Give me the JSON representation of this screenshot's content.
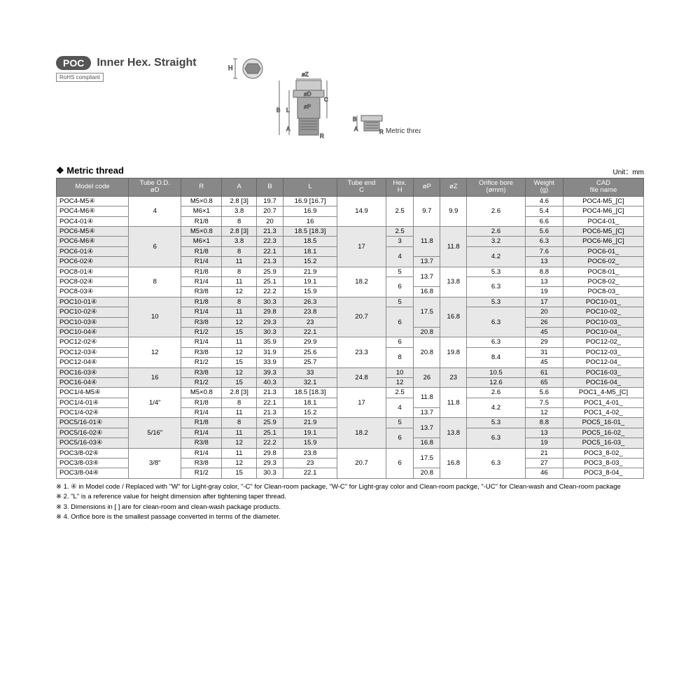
{
  "header": {
    "logo": "POC",
    "title": "Inner Hex. Straight",
    "rohs": "RoHS compliant",
    "metric_type_label": "Metric thread type"
  },
  "section": {
    "title": "Metric thread",
    "unit": "Unit：mm"
  },
  "table": {
    "headers": [
      "Model code",
      "Tube O.D.\nøD",
      "R",
      "A",
      "B",
      "L",
      "Tube end\nC",
      "Hex.\nH",
      "øP",
      "øZ",
      "Orifice bore\n(ømm)",
      "Weight\n(g)",
      "CAD\nfile name"
    ],
    "rows": [
      {
        "shade": false,
        "cells": [
          "POC4-M5④",
          {
            "v": "4",
            "rs": 3
          },
          "M5×0.8",
          "2.8 [3]",
          "19.7",
          "16.9 [16.7]",
          {
            "v": "14.9",
            "rs": 3
          },
          {
            "v": "2.5",
            "rs": 3
          },
          {
            "v": "9.7",
            "rs": 3
          },
          {
            "v": "9.9",
            "rs": 3
          },
          {
            "v": "2.6",
            "rs": 3
          },
          "4.6",
          "POC4-M5_[C]"
        ]
      },
      {
        "shade": false,
        "cells": [
          "POC4-M6④",
          "M6×1",
          "3.8",
          "20.7",
          "16.9",
          "5.4",
          "POC4-M6_[C]"
        ]
      },
      {
        "shade": false,
        "cells": [
          "POC4-01④",
          "R1/8",
          "8",
          "20",
          "16",
          "6.6",
          "POC4-01_"
        ]
      },
      {
        "shade": true,
        "cells": [
          "POC6-M5④",
          {
            "v": "6",
            "rs": 4
          },
          "M5×0.8",
          "2.8 [3]",
          "21.3",
          "18.5 [18.3]",
          {
            "v": "17",
            "rs": 4
          },
          "2.5",
          {
            "v": "11.8",
            "rs": 3
          },
          {
            "v": "11.8",
            "rs": 4
          },
          "2.6",
          "5.6",
          "POC6-M5_[C]"
        ]
      },
      {
        "shade": true,
        "cells": [
          "POC6-M6④",
          "M6×1",
          "3.8",
          "22.3",
          "18.5",
          "3",
          "3.2",
          "6.3",
          "POC6-M6_[C]"
        ]
      },
      {
        "shade": true,
        "cells": [
          "POC6-01④",
          "R1/8",
          "8",
          "22.1",
          "18.1",
          {
            "v": "4",
            "rs": 2
          },
          {
            "v": "4.2",
            "rs": 2
          },
          "7.6",
          "POC6-01_"
        ]
      },
      {
        "shade": true,
        "cells": [
          "POC6-02④",
          "R1/4",
          "11",
          "21.3",
          "15.2",
          "13.7",
          "13",
          "POC6-02_"
        ]
      },
      {
        "shade": false,
        "cells": [
          "POC8-01④",
          {
            "v": "8",
            "rs": 3
          },
          "R1/8",
          "8",
          "25.9",
          "21.9",
          {
            "v": "18.2",
            "rs": 3
          },
          "5",
          {
            "v": "13.7",
            "rs": 2
          },
          {
            "v": "13.8",
            "rs": 3
          },
          "5.3",
          "8.8",
          "POC8-01_"
        ]
      },
      {
        "shade": false,
        "cells": [
          "POC8-02④",
          "R1/4",
          "11",
          "25.1",
          "19.1",
          {
            "v": "6",
            "rs": 2
          },
          {
            "v": "6.3",
            "rs": 2
          },
          "13",
          "POC8-02_"
        ]
      },
      {
        "shade": false,
        "cells": [
          "POC8-03④",
          "R3/8",
          "12",
          "22.2",
          "15.9",
          "16.8",
          "19",
          "POC8-03_"
        ]
      },
      {
        "shade": true,
        "cells": [
          "POC10-01④",
          {
            "v": "10",
            "rs": 4
          },
          "R1/8",
          "8",
          "30.3",
          "26.3",
          {
            "v": "20.7",
            "rs": 4
          },
          "5",
          {
            "v": "17.5",
            "rs": 3
          },
          {
            "v": "16.8",
            "rs": 4
          },
          "5.3",
          "17",
          "POC10-01_"
        ]
      },
      {
        "shade": true,
        "cells": [
          "POC10-02④",
          "R1/4",
          "11",
          "29.8",
          "23.8",
          {
            "v": "6",
            "rs": 3
          },
          {
            "v": "6.3",
            "rs": 3
          },
          "20",
          "POC10-02_"
        ]
      },
      {
        "shade": true,
        "cells": [
          "POC10-03④",
          "R3/8",
          "12",
          "29.3",
          "23",
          "26",
          "POC10-03_"
        ]
      },
      {
        "shade": true,
        "cells": [
          "POC10-04④",
          "R1/2",
          "15",
          "30.3",
          "22.1",
          "20.8",
          "45",
          "POC10-04_"
        ]
      },
      {
        "shade": false,
        "cells": [
          "POC12-02④",
          {
            "v": "12",
            "rs": 3
          },
          "R1/4",
          "11",
          "35.9",
          "29.9",
          {
            "v": "23.3",
            "rs": 3
          },
          "6",
          {
            "v": "20.8",
            "rs": 3
          },
          {
            "v": "19.8",
            "rs": 3
          },
          "6.3",
          "29",
          "POC12-02_"
        ]
      },
      {
        "shade": false,
        "cells": [
          "POC12-03④",
          "R3/8",
          "12",
          "31.9",
          "25.6",
          {
            "v": "8",
            "rs": 2
          },
          {
            "v": "8.4",
            "rs": 2
          },
          "31",
          "POC12-03_"
        ]
      },
      {
        "shade": false,
        "cells": [
          "POC12-04④",
          "R1/2",
          "15",
          "33.9",
          "25.7",
          "45",
          "POC12-04_"
        ]
      },
      {
        "shade": true,
        "cells": [
          "POC16-03④",
          {
            "v": "16",
            "rs": 2
          },
          "R3/8",
          "12",
          "39.3",
          "33",
          {
            "v": "24.8",
            "rs": 2
          },
          "10",
          {
            "v": "26",
            "rs": 2
          },
          {
            "v": "23",
            "rs": 2
          },
          "10.5",
          "61",
          "POC16-03_"
        ]
      },
      {
        "shade": true,
        "cells": [
          "POC16-04④",
          "R1/2",
          "15",
          "40.3",
          "32.1",
          "12",
          "12.6",
          "65",
          "POC16-04_"
        ]
      },
      {
        "shade": false,
        "cells": [
          "POC1/4-M5④",
          {
            "v": "1/4\"",
            "rs": 3
          },
          "M5×0.8",
          "2.8 [3]",
          "21.3",
          "18.5 [18.3]",
          {
            "v": "17",
            "rs": 3
          },
          "2.5",
          {
            "v": "11.8",
            "rs": 2
          },
          {
            "v": "11.8",
            "rs": 3
          },
          "2.6",
          "5.6",
          "POC1_4-M5_[C]"
        ]
      },
      {
        "shade": false,
        "cells": [
          "POC1/4-01④",
          "R1/8",
          "8",
          "22.1",
          "18.1",
          {
            "v": "4",
            "rs": 2
          },
          {
            "v": "4.2",
            "rs": 2
          },
          "7.5",
          "POC1_4-01_"
        ]
      },
      {
        "shade": false,
        "cells": [
          "POC1/4-02④",
          "R1/4",
          "11",
          "21.3",
          "15.2",
          "13.7",
          "12",
          "POC1_4-02_"
        ]
      },
      {
        "shade": true,
        "cells": [
          "POC5/16-01④",
          {
            "v": "5/16\"",
            "rs": 3
          },
          "R1/8",
          "8",
          "25.9",
          "21.9",
          {
            "v": "18.2",
            "rs": 3
          },
          "5",
          {
            "v": "13.7",
            "rs": 2
          },
          {
            "v": "13.8",
            "rs": 3
          },
          "5.3",
          "8.8",
          "POC5_16-01_"
        ]
      },
      {
        "shade": true,
        "cells": [
          "POC5/16-02④",
          "R1/4",
          "11",
          "25.1",
          "19.1",
          {
            "v": "6",
            "rs": 2
          },
          {
            "v": "6.3",
            "rs": 2
          },
          "13",
          "POC5_16-02_"
        ]
      },
      {
        "shade": true,
        "cells": [
          "POC5/16-03④",
          "R3/8",
          "12",
          "22.2",
          "15.9",
          "16.8",
          "19",
          "POC5_16-03_"
        ]
      },
      {
        "shade": false,
        "cells": [
          "POC3/8-02④",
          {
            "v": "3/8\"",
            "rs": 3
          },
          "R1/4",
          "11",
          "29.8",
          "23.8",
          {
            "v": "20.7",
            "rs": 3
          },
          {
            "v": "6",
            "rs": 3
          },
          {
            "v": "17.5",
            "rs": 2
          },
          {
            "v": "16.8",
            "rs": 3
          },
          {
            "v": "6.3",
            "rs": 3
          },
          "21",
          "POC3_8-02_"
        ]
      },
      {
        "shade": false,
        "cells": [
          "POC3/8-03④",
          "R3/8",
          "12",
          "29.3",
          "23",
          "27",
          "POC3_8-03_"
        ]
      },
      {
        "shade": false,
        "cells": [
          "POC3/8-04④",
          "R1/2",
          "15",
          "30.3",
          "22.1",
          "20.8",
          "46",
          "POC3_8-04_"
        ]
      }
    ]
  },
  "notes": [
    "※ 1. ④ in Model code / Replaced with \"W\" for Light-gray color, \"-C\" for Clean-room package, \"W-C\" for Light-gray color and Clean-room packge, \"-UC\" for Clean-wash and Clean-room package",
    "※ 2. \"L\" is a reference value for height dimension after tightening taper thread.",
    "※ 3. Dimensions in [ ] are for clean-room and clean-wash package products.",
    "※ 4. Orifice bore is the smallest passage converted in terms of the diameter."
  ]
}
